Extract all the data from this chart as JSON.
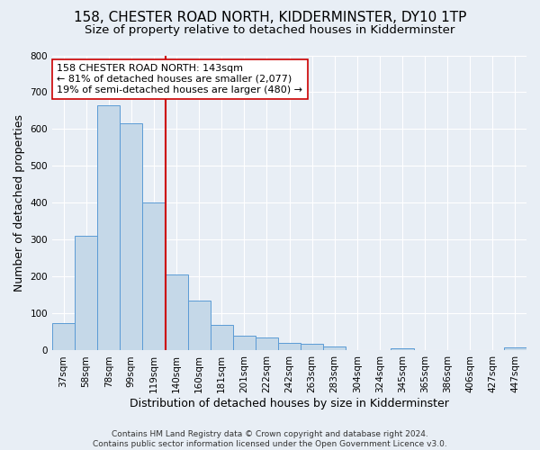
{
  "title": "158, CHESTER ROAD NORTH, KIDDERMINSTER, DY10 1TP",
  "subtitle": "Size of property relative to detached houses in Kidderminster",
  "xlabel": "Distribution of detached houses by size in Kidderminster",
  "ylabel": "Number of detached properties",
  "footnote": "Contains HM Land Registry data © Crown copyright and database right 2024.\nContains public sector information licensed under the Open Government Licence v3.0.",
  "bar_labels": [
    "37sqm",
    "58sqm",
    "78sqm",
    "99sqm",
    "119sqm",
    "140sqm",
    "160sqm",
    "181sqm",
    "201sqm",
    "222sqm",
    "242sqm",
    "263sqm",
    "283sqm",
    "304sqm",
    "324sqm",
    "345sqm",
    "365sqm",
    "386sqm",
    "406sqm",
    "427sqm",
    "447sqm"
  ],
  "bar_values": [
    75,
    312,
    665,
    615,
    400,
    205,
    135,
    70,
    40,
    35,
    20,
    17,
    12,
    0,
    0,
    7,
    0,
    0,
    0,
    0,
    8
  ],
  "bar_color": "#c5d8e8",
  "bar_edge_color": "#5b9bd5",
  "vline_index": 5,
  "vline_color": "#cc0000",
  "annotation_text": "158 CHESTER ROAD NORTH: 143sqm\n← 81% of detached houses are smaller (2,077)\n19% of semi-detached houses are larger (480) →",
  "annotation_box_color": "#ffffff",
  "annotation_box_edge": "#cc0000",
  "ylim": [
    0,
    800
  ],
  "yticks": [
    0,
    100,
    200,
    300,
    400,
    500,
    600,
    700,
    800
  ],
  "background_color": "#e8eef5",
  "grid_color": "#ffffff",
  "title_fontsize": 11,
  "subtitle_fontsize": 9.5,
  "ylabel_fontsize": 9,
  "xlabel_fontsize": 9,
  "tick_fontsize": 7.5,
  "annotation_fontsize": 8,
  "footnote_fontsize": 6.5
}
